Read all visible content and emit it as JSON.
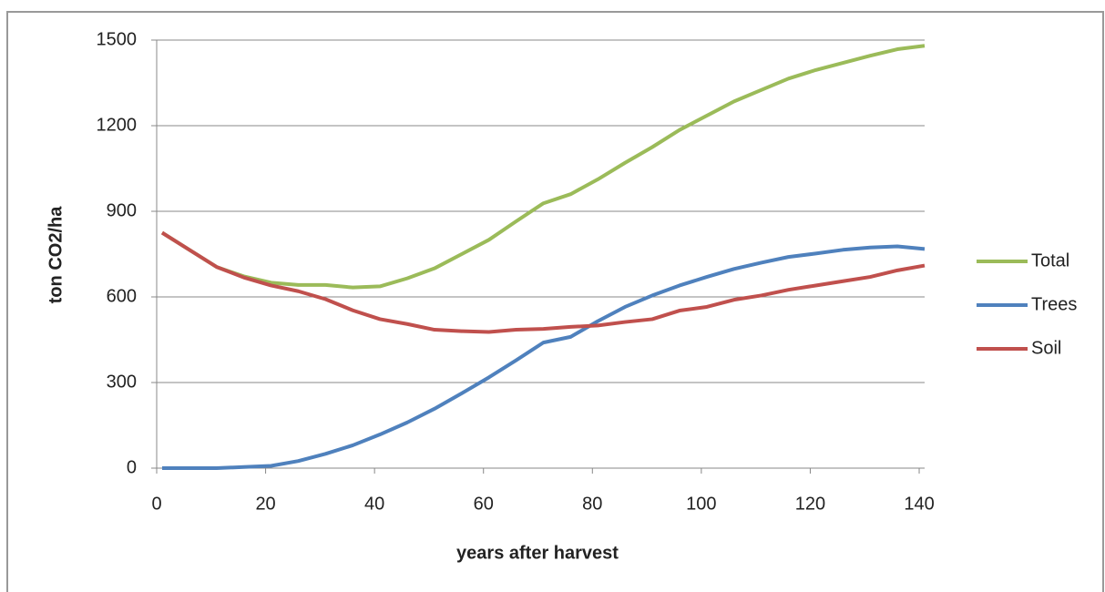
{
  "chart_data": {
    "type": "line",
    "x_label": "years after harvest",
    "y_label": "ton CO2/ha",
    "x": [
      1,
      6,
      11,
      16,
      21,
      26,
      31,
      36,
      41,
      46,
      51,
      56,
      61,
      66,
      71,
      76,
      81,
      86,
      91,
      96,
      101,
      106,
      111,
      116,
      121,
      126,
      131,
      136,
      141
    ],
    "series": [
      {
        "name": "Total",
        "color": "#9bbb59",
        "values": [
          825,
          765,
          705,
          672,
          650,
          642,
          642,
          633,
          637,
          665,
          700,
          750,
          800,
          865,
          928,
          960,
          1012,
          1070,
          1125,
          1185,
          1235,
          1285,
          1325,
          1365,
          1395,
          1420,
          1445,
          1468,
          1480
        ]
      },
      {
        "name": "Trees",
        "color": "#4f81bd",
        "values": [
          0,
          0,
          0,
          4,
          8,
          25,
          50,
          80,
          118,
          160,
          208,
          262,
          318,
          378,
          440,
          460,
          515,
          565,
          605,
          640,
          670,
          698,
          720,
          740,
          752,
          765,
          773,
          777,
          768
        ]
      },
      {
        "name": "Soil",
        "color": "#c0504d",
        "values": [
          825,
          765,
          705,
          668,
          640,
          620,
          592,
          553,
          522,
          505,
          485,
          480,
          477,
          485,
          488,
          495,
          500,
          512,
          522,
          552,
          565,
          590,
          605,
          625,
          640,
          655,
          670,
          693,
          710
        ]
      }
    ],
    "xlim": [
      0,
      141
    ],
    "xticks": [
      0,
      20,
      40,
      60,
      80,
      100,
      120,
      140
    ],
    "ylim": [
      0,
      1500
    ],
    "yticks": [
      0,
      300,
      600,
      900,
      1200,
      1500
    ],
    "grid": true,
    "legend": "right"
  }
}
